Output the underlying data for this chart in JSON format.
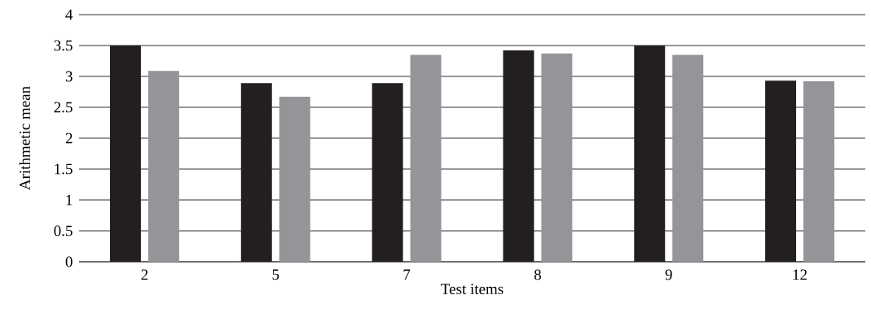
{
  "chart_data": {
    "type": "bar",
    "xlabel": "Test items",
    "ylabel": "Arithmetic mean",
    "categories": [
      "2",
      "5",
      "7",
      "8",
      "9",
      "12"
    ],
    "series": [
      {
        "color": "#231f20",
        "values": [
          3.5,
          2.89,
          2.89,
          3.42,
          3.5,
          2.93
        ]
      },
      {
        "color": "#939598",
        "values": [
          3.09,
          2.67,
          3.35,
          3.37,
          3.35,
          2.92
        ]
      }
    ],
    "ylim": [
      0,
      4
    ],
    "yticks": [
      0,
      0.5,
      1,
      1.5,
      2,
      2.5,
      3,
      3.5,
      4
    ],
    "grid": "y"
  }
}
